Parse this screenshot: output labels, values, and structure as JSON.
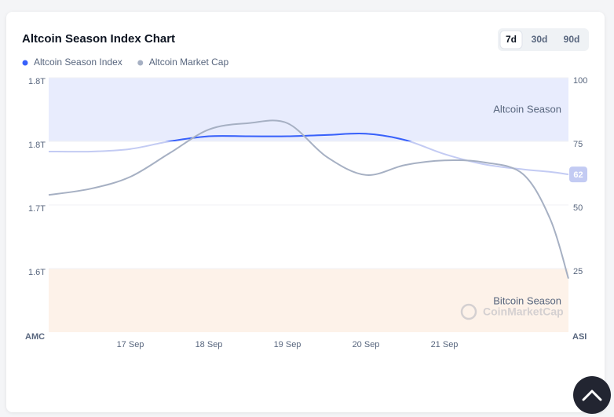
{
  "chart_data": {
    "type": "line",
    "title": "Altcoin Season Index Chart",
    "range_buttons": [
      "7d",
      "30d",
      "90d"
    ],
    "selected_range": "7d",
    "x": [
      -0.04,
      0.5,
      1,
      1.5,
      2,
      2.5,
      3,
      3.5,
      4,
      4.5,
      5,
      5.5,
      6,
      6.35,
      6.58
    ],
    "xlim": [
      -0.04,
      6.58
    ],
    "xticks": [
      {
        "value": 1,
        "label": "17 Sep"
      },
      {
        "value": 2,
        "label": "18 Sep"
      },
      {
        "value": 3,
        "label": "19 Sep"
      },
      {
        "value": 4,
        "label": "20 Sep"
      },
      {
        "value": 5,
        "label": "21 Sep"
      }
    ],
    "ylabel": "AMC",
    "y2label": "ASI",
    "ylim": [
      1.55,
      1.83
    ],
    "yticks": [
      {
        "value": 1.83,
        "label": "1.8T"
      },
      {
        "value": 1.76,
        "label": "1.8T"
      },
      {
        "value": 1.69,
        "label": "1.7T"
      },
      {
        "value": 1.62,
        "label": "1.6T"
      }
    ],
    "y2lim": [
      0,
      100
    ],
    "y2ticks": [
      100,
      75,
      50,
      25
    ],
    "bands": [
      {
        "label": "Altcoin Season",
        "from": 75,
        "to": 100,
        "color": "#e8ecfd"
      },
      {
        "label": "Bitcoin Season",
        "from": 0,
        "to": 25,
        "color": "#fdf2e9"
      }
    ],
    "watermark": "CoinMarketCap",
    "series": [
      {
        "name": "Altcoin Season Index",
        "color": "#3861fb",
        "faded_color": "#c3cbf3",
        "axis": "y2",
        "values": [
          71,
          71,
          72,
          75,
          77,
          77,
          77,
          77.5,
          78,
          75.5,
          70,
          66,
          64,
          63,
          62
        ]
      },
      {
        "name": "Altcoin Market Cap",
        "color": "#a6b0c3",
        "values": [
          1.701,
          1.708,
          1.721,
          1.747,
          1.773,
          1.78,
          1.78,
          1.743,
          1.723,
          1.734,
          1.739,
          1.737,
          1.724,
          1.674,
          1.609
        ]
      }
    ]
  }
}
